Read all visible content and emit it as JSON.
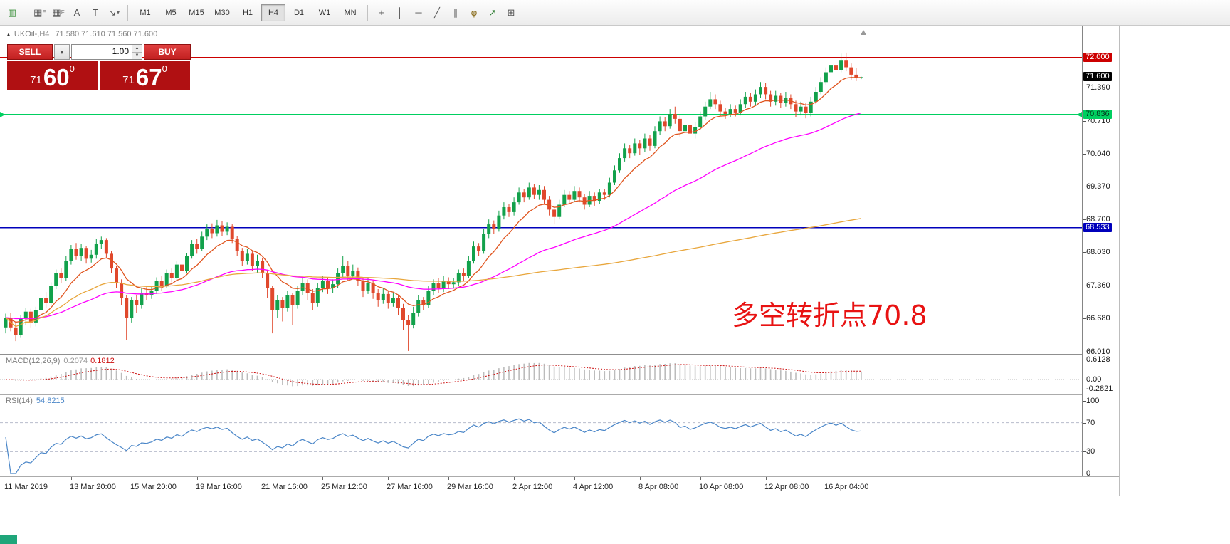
{
  "toolbar": {
    "primary_icons": [
      {
        "name": "new-order-icon",
        "glyph": "▥",
        "color": "#3a8f3a"
      }
    ],
    "tool_icons": [
      {
        "name": "expert-advisors-icon",
        "glyph": "▦",
        "sub": "E"
      },
      {
        "name": "grid-icon",
        "glyph": "▦",
        "sub": "F"
      },
      {
        "name": "text-annotation-icon",
        "glyph": "A"
      },
      {
        "name": "text-box-icon",
        "glyph": "T"
      },
      {
        "name": "arrow-tools-icon",
        "glyph": "↘",
        "caret": true
      }
    ],
    "timeframes": [
      {
        "label": "M1",
        "active": false
      },
      {
        "label": "M5",
        "active": false
      },
      {
        "label": "M15",
        "active": false
      },
      {
        "label": "M30",
        "active": false
      },
      {
        "label": "H1",
        "active": false
      },
      {
        "label": "H4",
        "active": true
      },
      {
        "label": "D1",
        "active": false
      },
      {
        "label": "W1",
        "active": false
      },
      {
        "label": "MN",
        "active": false
      }
    ],
    "right_icons": [
      {
        "name": "crosshair-icon",
        "glyph": "+"
      },
      {
        "name": "vertical-line-icon",
        "glyph": "│"
      },
      {
        "name": "horizontal-line-icon",
        "glyph": "─"
      },
      {
        "name": "trendline-icon",
        "glyph": "╱"
      },
      {
        "name": "equidistant-channel-icon",
        "glyph": "∥"
      },
      {
        "name": "fibonacci-icon",
        "glyph": "φ",
        "color": "#8a6d1d"
      },
      {
        "name": "arrows-icon",
        "glyph": "↗",
        "color": "#2e7d32"
      },
      {
        "name": "indicators-icon",
        "glyph": "⊞"
      }
    ]
  },
  "header": {
    "symbol": "UKOil-,H4",
    "ohlc": "71.580 71.610 71.560 71.600"
  },
  "trade": {
    "sell_label": "SELL",
    "buy_label": "BUY",
    "volume": "1.00",
    "sell_price": {
      "prefix": "71",
      "main": "60",
      "sup": "0"
    },
    "buy_price": {
      "prefix": "71",
      "main": "67",
      "sup": "0"
    }
  },
  "annotation": {
    "text": "多空转折点70.8",
    "color": "#e81212"
  },
  "levels": [
    {
      "label": "72.000",
      "value": 72.0,
      "color": "#cc0000",
      "text_color": "#ffffff",
      "width": 1.5
    },
    {
      "label": "70.836",
      "value": 70.836,
      "color": "#00cf60",
      "text_color": "#00391d",
      "width": 2
    },
    {
      "label": "68.533",
      "value": 68.533,
      "color": "#0000bb",
      "text_color": "#ffffff",
      "width": 1.5
    }
  ],
  "current_price": {
    "label": "71.600",
    "value": 71.6,
    "bg": "#000000",
    "fg": "#ffffff"
  },
  "axis": {
    "price_ticks": [
      {
        "label": "71.390",
        "value": 71.39
      },
      {
        "label": "70.710",
        "value": 70.71
      },
      {
        "label": "70.040",
        "value": 70.04
      },
      {
        "label": "69.370",
        "value": 69.37
      },
      {
        "label": "68.700",
        "value": 68.7
      },
      {
        "label": "68.030",
        "value": 68.03
      },
      {
        "label": "67.360",
        "value": 67.36
      },
      {
        "label": "66.680",
        "value": 66.68
      },
      {
        "label": "66.010",
        "value": 66.01
      }
    ],
    "time_labels": [
      {
        "text": "11 Mar 2019",
        "i": 0
      },
      {
        "text": "13 Mar 20:00",
        "i": 13
      },
      {
        "text": "15 Mar 20:00",
        "i": 25
      },
      {
        "text": "19 Mar 16:00",
        "i": 38
      },
      {
        "text": "21 Mar 16:00",
        "i": 51
      },
      {
        "text": "25 Mar 12:00",
        "i": 63
      },
      {
        "text": "27 Mar 16:00",
        "i": 76
      },
      {
        "text": "29 Mar 16:00",
        "i": 88
      },
      {
        "text": "2 Apr 12:00",
        "i": 101
      },
      {
        "text": "4 Apr 12:00",
        "i": 113
      },
      {
        "text": "8 Apr 08:00",
        "i": 126
      },
      {
        "text": "10 Apr 08:00",
        "i": 138
      },
      {
        "text": "12 Apr 08:00",
        "i": 151
      },
      {
        "text": "16 Apr 04:00",
        "i": 163
      }
    ]
  },
  "chart_data": {
    "type": "candlestick",
    "symbol": "UKOil-",
    "timeframe": "H4",
    "title": "UKOil-,H4",
    "current_ohlc": {
      "open": "71.580",
      "high": "71.610",
      "low": "71.560",
      "close": "71.600"
    },
    "ylim": [
      65.96,
      72.65
    ],
    "colors": {
      "up": "#12a14b",
      "down": "#e0482c"
    },
    "ma": [
      {
        "name": "ma-fast",
        "type": "ema",
        "period": 10,
        "color": "#e0551f"
      },
      {
        "name": "ma-medium",
        "type": "ema",
        "period": 48,
        "color": "#ff00ff"
      },
      {
        "name": "ma-slow",
        "type": "cum",
        "color": "#e8a63c"
      }
    ],
    "candles": [
      [
        66.5,
        66.78,
        66.38,
        66.7
      ],
      [
        66.7,
        66.8,
        66.42,
        66.5
      ],
      [
        66.5,
        66.62,
        66.22,
        66.35
      ],
      [
        66.35,
        66.75,
        66.3,
        66.68
      ],
      [
        66.68,
        66.9,
        66.55,
        66.82
      ],
      [
        66.82,
        66.88,
        66.5,
        66.6
      ],
      [
        66.6,
        66.92,
        66.52,
        66.85
      ],
      [
        66.85,
        67.18,
        66.8,
        67.1
      ],
      [
        67.1,
        67.22,
        66.9,
        67.0
      ],
      [
        67.0,
        67.42,
        66.95,
        67.35
      ],
      [
        67.35,
        67.68,
        67.28,
        67.6
      ],
      [
        67.6,
        67.7,
        67.4,
        67.5
      ],
      [
        67.5,
        67.95,
        67.45,
        67.85
      ],
      [
        67.85,
        68.18,
        67.78,
        68.1
      ],
      [
        68.1,
        68.22,
        67.88,
        67.95
      ],
      [
        67.95,
        68.2,
        67.85,
        68.12
      ],
      [
        68.12,
        68.16,
        67.8,
        67.9
      ],
      [
        67.9,
        68.08,
        67.82,
        67.98
      ],
      [
        67.98,
        68.3,
        67.9,
        68.2
      ],
      [
        68.2,
        68.35,
        68.1,
        68.28
      ],
      [
        68.28,
        68.32,
        67.92,
        68.0
      ],
      [
        68.0,
        68.05,
        67.6,
        67.7
      ],
      [
        67.7,
        67.75,
        67.3,
        67.4
      ],
      [
        67.4,
        67.48,
        66.95,
        67.1
      ],
      [
        67.1,
        67.15,
        66.25,
        66.7
      ],
      [
        66.7,
        67.12,
        66.6,
        67.05
      ],
      [
        67.05,
        67.15,
        66.8,
        66.95
      ],
      [
        66.95,
        67.3,
        66.88,
        67.2
      ],
      [
        67.2,
        67.32,
        67.05,
        67.15
      ],
      [
        67.15,
        67.35,
        67.08,
        67.25
      ],
      [
        67.25,
        67.52,
        67.18,
        67.45
      ],
      [
        67.45,
        67.55,
        67.25,
        67.35
      ],
      [
        67.35,
        67.68,
        67.3,
        67.6
      ],
      [
        67.6,
        67.7,
        67.42,
        67.5
      ],
      [
        67.5,
        67.85,
        67.45,
        67.78
      ],
      [
        67.78,
        67.88,
        67.55,
        67.65
      ],
      [
        67.65,
        68.02,
        67.6,
        67.95
      ],
      [
        67.95,
        68.28,
        67.9,
        68.2
      ],
      [
        68.2,
        68.3,
        68.0,
        68.1
      ],
      [
        68.1,
        68.45,
        68.05,
        68.35
      ],
      [
        68.35,
        68.6,
        68.28,
        68.5
      ],
      [
        68.5,
        68.62,
        68.32,
        68.42
      ],
      [
        68.42,
        68.69,
        68.35,
        68.58
      ],
      [
        68.58,
        68.66,
        68.36,
        68.45
      ],
      [
        68.45,
        68.64,
        68.38,
        68.55
      ],
      [
        68.55,
        68.6,
        68.22,
        68.3
      ],
      [
        68.3,
        68.36,
        67.95,
        68.05
      ],
      [
        68.05,
        68.12,
        67.75,
        67.85
      ],
      [
        67.85,
        68.1,
        67.78,
        68.0
      ],
      [
        68.0,
        68.06,
        67.65,
        67.75
      ],
      [
        67.75,
        67.98,
        67.62,
        67.85
      ],
      [
        67.85,
        67.92,
        67.5,
        67.6
      ],
      [
        67.6,
        67.65,
        67.1,
        67.3
      ],
      [
        67.3,
        67.35,
        66.38,
        66.85
      ],
      [
        66.85,
        67.15,
        66.7,
        67.05
      ],
      [
        67.05,
        67.12,
        66.62,
        66.9
      ],
      [
        66.9,
        67.25,
        66.82,
        67.15
      ],
      [
        67.15,
        67.2,
        66.55,
        66.95
      ],
      [
        66.95,
        67.35,
        66.88,
        67.25
      ],
      [
        67.25,
        67.5,
        67.15,
        67.4
      ],
      [
        67.4,
        67.48,
        67.05,
        67.2
      ],
      [
        67.2,
        67.28,
        66.85,
        67.0
      ],
      [
        67.0,
        67.4,
        66.92,
        67.3
      ],
      [
        67.3,
        67.55,
        67.22,
        67.45
      ],
      [
        67.45,
        67.52,
        67.18,
        67.3
      ],
      [
        67.3,
        67.48,
        67.2,
        67.38
      ],
      [
        67.38,
        67.7,
        67.3,
        67.6
      ],
      [
        67.6,
        67.95,
        67.52,
        67.75
      ],
      [
        67.75,
        67.85,
        67.45,
        67.55
      ],
      [
        67.55,
        67.78,
        67.48,
        67.65
      ],
      [
        67.65,
        67.72,
        67.35,
        67.45
      ],
      [
        67.45,
        67.52,
        67.12,
        67.25
      ],
      [
        67.25,
        67.5,
        67.18,
        67.4
      ],
      [
        67.4,
        67.46,
        67.08,
        67.2
      ],
      [
        67.2,
        67.28,
        66.92,
        67.05
      ],
      [
        67.05,
        67.3,
        66.98,
        67.18
      ],
      [
        67.18,
        67.25,
        66.88,
        67.0
      ],
      [
        67.0,
        67.22,
        66.92,
        67.1
      ],
      [
        67.1,
        67.15,
        66.75,
        66.9
      ],
      [
        66.9,
        66.98,
        66.45,
        66.65
      ],
      [
        66.65,
        66.75,
        66.02,
        66.55
      ],
      [
        66.55,
        66.92,
        66.48,
        66.8
      ],
      [
        66.8,
        67.15,
        66.72,
        67.05
      ],
      [
        67.05,
        67.12,
        66.85,
        66.95
      ],
      [
        66.95,
        67.35,
        66.9,
        67.25
      ],
      [
        67.25,
        67.48,
        67.15,
        67.4
      ],
      [
        67.4,
        67.5,
        67.2,
        67.3
      ],
      [
        67.3,
        67.55,
        67.22,
        67.45
      ],
      [
        67.45,
        67.52,
        67.28,
        67.38
      ],
      [
        67.38,
        67.5,
        67.3,
        67.42
      ],
      [
        67.42,
        67.68,
        67.35,
        67.6
      ],
      [
        67.6,
        67.7,
        67.45,
        67.55
      ],
      [
        67.55,
        67.95,
        67.5,
        67.85
      ],
      [
        67.85,
        68.25,
        67.8,
        68.15
      ],
      [
        68.15,
        68.22,
        67.95,
        68.05
      ],
      [
        68.05,
        68.5,
        68.0,
        68.4
      ],
      [
        68.4,
        68.7,
        68.32,
        68.6
      ],
      [
        68.6,
        68.68,
        68.4,
        68.5
      ],
      [
        68.5,
        68.88,
        68.45,
        68.78
      ],
      [
        68.78,
        69.05,
        68.7,
        68.95
      ],
      [
        68.95,
        69.02,
        68.75,
        68.85
      ],
      [
        68.85,
        69.15,
        68.78,
        69.05
      ],
      [
        69.05,
        69.35,
        69.0,
        69.25
      ],
      [
        69.25,
        69.32,
        69.05,
        69.15
      ],
      [
        69.15,
        69.45,
        69.1,
        69.35
      ],
      [
        69.35,
        69.42,
        69.12,
        69.2
      ],
      [
        69.2,
        69.4,
        69.1,
        69.3
      ],
      [
        69.3,
        69.38,
        69.0,
        69.1
      ],
      [
        69.1,
        69.18,
        68.78,
        68.9
      ],
      [
        68.9,
        68.98,
        68.6,
        68.75
      ],
      [
        68.75,
        69.1,
        68.7,
        69.0
      ],
      [
        69.0,
        69.3,
        68.95,
        69.2
      ],
      [
        69.2,
        69.28,
        69.02,
        69.1
      ],
      [
        69.1,
        69.38,
        69.05,
        69.28
      ],
      [
        69.28,
        69.35,
        69.05,
        69.15
      ],
      [
        69.15,
        69.22,
        68.9,
        69.0
      ],
      [
        69.0,
        69.28,
        68.95,
        69.18
      ],
      [
        69.18,
        69.25,
        68.98,
        69.08
      ],
      [
        69.08,
        69.32,
        69.02,
        69.25
      ],
      [
        69.25,
        69.32,
        69.1,
        69.2
      ],
      [
        69.2,
        69.55,
        69.15,
        69.45
      ],
      [
        69.45,
        69.8,
        69.4,
        69.7
      ],
      [
        69.7,
        70.05,
        69.65,
        69.95
      ],
      [
        69.95,
        70.25,
        69.88,
        70.15
      ],
      [
        70.15,
        70.22,
        69.95,
        70.05
      ],
      [
        70.05,
        70.35,
        70.0,
        70.25
      ],
      [
        70.25,
        70.32,
        70.02,
        70.15
      ],
      [
        70.15,
        70.45,
        70.08,
        70.35
      ],
      [
        70.35,
        70.42,
        70.1,
        70.2
      ],
      [
        70.2,
        70.6,
        70.15,
        70.5
      ],
      [
        70.5,
        70.8,
        70.42,
        70.7
      ],
      [
        70.7,
        70.78,
        70.5,
        70.6
      ],
      [
        70.6,
        70.95,
        70.55,
        70.85
      ],
      [
        70.85,
        71.0,
        70.65,
        70.75
      ],
      [
        70.75,
        70.82,
        70.38,
        70.5
      ],
      [
        70.5,
        70.72,
        70.42,
        70.62
      ],
      [
        70.62,
        70.68,
        70.3,
        70.45
      ],
      [
        70.45,
        70.68,
        70.35,
        70.58
      ],
      [
        70.58,
        70.9,
        70.52,
        70.8
      ],
      [
        70.8,
        71.1,
        70.72,
        71.0
      ],
      [
        71.0,
        71.3,
        70.95,
        71.15
      ],
      [
        71.15,
        71.25,
        70.95,
        71.05
      ],
      [
        71.05,
        71.12,
        70.8,
        70.9
      ],
      [
        70.9,
        70.98,
        70.75,
        70.85
      ],
      [
        70.85,
        71.05,
        70.78,
        70.95
      ],
      [
        70.95,
        71.02,
        70.8,
        70.88
      ],
      [
        70.88,
        71.15,
        70.82,
        71.05
      ],
      [
        71.05,
        71.3,
        70.98,
        71.2
      ],
      [
        71.2,
        71.28,
        71.0,
        71.1
      ],
      [
        71.1,
        71.35,
        71.02,
        71.25
      ],
      [
        71.25,
        71.5,
        71.18,
        71.4
      ],
      [
        71.4,
        71.48,
        71.15,
        71.25
      ],
      [
        71.25,
        71.32,
        71.0,
        71.1
      ],
      [
        71.1,
        71.32,
        71.02,
        71.22
      ],
      [
        71.22,
        71.28,
        70.98,
        71.08
      ],
      [
        71.08,
        71.3,
        71.0,
        71.18
      ],
      [
        71.18,
        71.25,
        70.95,
        71.05
      ],
      [
        71.05,
        71.12,
        70.78,
        70.9
      ],
      [
        70.9,
        71.1,
        70.82,
        71.0
      ],
      [
        71.0,
        71.08,
        70.76,
        70.88
      ],
      [
        70.88,
        71.2,
        70.8,
        71.1
      ],
      [
        71.1,
        71.4,
        71.05,
        71.3
      ],
      [
        71.3,
        71.6,
        71.25,
        71.5
      ],
      [
        71.5,
        71.8,
        71.45,
        71.7
      ],
      [
        71.7,
        71.95,
        71.62,
        71.85
      ],
      [
        71.85,
        71.92,
        71.65,
        71.75
      ],
      [
        71.75,
        72.08,
        71.7,
        71.95
      ],
      [
        71.95,
        72.1,
        71.72,
        71.8
      ],
      [
        71.8,
        71.88,
        71.55,
        71.65
      ],
      [
        71.65,
        71.78,
        71.52,
        71.58
      ],
      [
        71.58,
        71.61,
        71.56,
        71.6
      ]
    ],
    "indicators": {
      "macd": {
        "label": "MACD(12,26,9)",
        "value_main": "0.2074",
        "value_signal": "0.1812",
        "hist_color": "#bcbcbc",
        "signal_color": "#cc1111",
        "axis": [
          {
            "label": "0.6128",
            "value": 0.6128
          },
          {
            "label": "0.00",
            "value": 0
          },
          {
            "label": "-0.2821",
            "value": -0.2821
          }
        ]
      },
      "rsi": {
        "label": "RSI(14)",
        "value": "54.8215",
        "line_color": "#4a86c8",
        "level_color": "#b8bccc",
        "axis": [
          {
            "label": "100",
            "value": 100
          },
          {
            "label": "70",
            "value": 70
          },
          {
            "label": "30",
            "value": 30
          },
          {
            "label": "0",
            "value": 0
          }
        ]
      }
    }
  }
}
